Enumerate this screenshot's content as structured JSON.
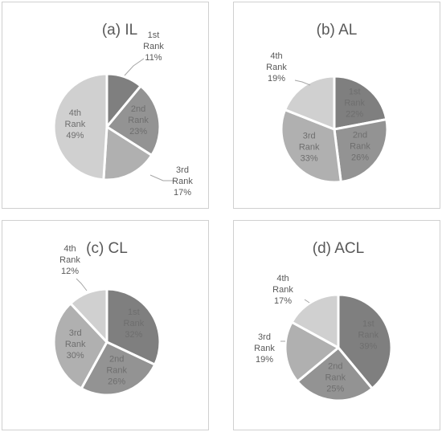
{
  "chart_data": [
    {
      "type": "pie",
      "title": "(a) IL",
      "slices": [
        {
          "label_lines": [
            "1st",
            "Rank",
            "11%"
          ],
          "value": 11
        },
        {
          "label_lines": [
            "2nd",
            "Rank",
            "23%"
          ],
          "value": 23
        },
        {
          "label_lines": [
            "3rd",
            "Rank",
            "17%"
          ],
          "value": 17
        },
        {
          "label_lines": [
            "4th",
            "Rank",
            "49%"
          ],
          "value": 49
        }
      ]
    },
    {
      "type": "pie",
      "title": "(b) AL",
      "slices": [
        {
          "label_lines": [
            "1st",
            "Rank",
            "22%"
          ],
          "value": 22
        },
        {
          "label_lines": [
            "2nd",
            "Rank",
            "26%"
          ],
          "value": 26
        },
        {
          "label_lines": [
            "3rd",
            "Rank",
            "33%"
          ],
          "value": 33
        },
        {
          "label_lines": [
            "4th",
            "Rank",
            "19%"
          ],
          "value": 19
        }
      ]
    },
    {
      "type": "pie",
      "title": "(c) CL",
      "slices": [
        {
          "label_lines": [
            "1st",
            "Rank",
            "32%"
          ],
          "value": 32
        },
        {
          "label_lines": [
            "2nd",
            "Rank",
            "26%"
          ],
          "value": 26
        },
        {
          "label_lines": [
            "3rd",
            "Rank",
            "30%"
          ],
          "value": 30
        },
        {
          "label_lines": [
            "4th",
            "Rank",
            "12%"
          ],
          "value": 12
        }
      ]
    },
    {
      "type": "pie",
      "title": "(d) ACL",
      "slices": [
        {
          "label_lines": [
            "1st",
            "Rank",
            "39%"
          ],
          "value": 39
        },
        {
          "label_lines": [
            "2nd",
            "Rank",
            "25%"
          ],
          "value": 25
        },
        {
          "label_lines": [
            "3rd",
            "Rank",
            "19%"
          ],
          "value": 19
        },
        {
          "label_lines": [
            "4th",
            "Rank",
            "17%"
          ],
          "value": 17
        }
      ]
    }
  ],
  "colors": {
    "rank1": "#7f7f7f",
    "rank2": "#939393",
    "rank3": "#b0b0b0",
    "rank4": "#d0d0d0",
    "separator": "#ffffff",
    "title": "#595959",
    "label_inside": "#6e6e6e",
    "label_outside": "#595959",
    "leader": "#a6a6a6"
  }
}
